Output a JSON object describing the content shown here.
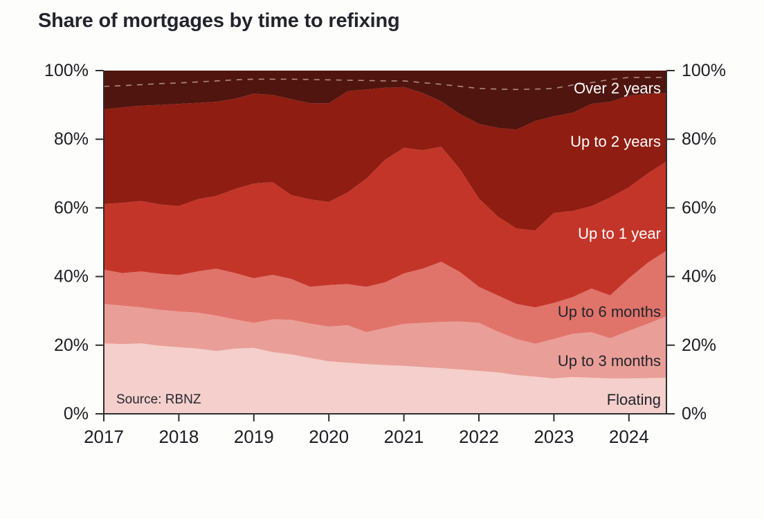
{
  "title": "Share of mortgages by time to refixing",
  "source_note": "Source: RBNZ",
  "chart_data": {
    "type": "area",
    "stacked": true,
    "title": "Share of mortgages by time to refixing",
    "source": "Source: RBNZ",
    "x_range": [
      2017,
      2024.5
    ],
    "ylim": [
      0,
      100
    ],
    "grid": false,
    "legend_position": "labels-inside-right",
    "x": [
      2017,
      2017.25,
      2017.5,
      2017.75,
      2018,
      2018.25,
      2018.5,
      2018.75,
      2019,
      2019.25,
      2019.5,
      2019.75,
      2020,
      2020.25,
      2020.5,
      2020.75,
      2021,
      2021.25,
      2021.5,
      2021.75,
      2022,
      2022.25,
      2022.5,
      2022.75,
      2023,
      2023.25,
      2023.5,
      2023.75,
      2024,
      2024.25,
      2024.5
    ],
    "x_ticks": [
      {
        "value": 2017,
        "label": "2017"
      },
      {
        "value": 2018,
        "label": "2018"
      },
      {
        "value": 2019,
        "label": "2019"
      },
      {
        "value": 2020,
        "label": "2020"
      },
      {
        "value": 2021,
        "label": "2021"
      },
      {
        "value": 2022,
        "label": "2022"
      },
      {
        "value": 2023,
        "label": "2023"
      },
      {
        "value": 2024,
        "label": "2024"
      }
    ],
    "y_ticks": [
      {
        "value": 0,
        "label": "0%"
      },
      {
        "value": 20,
        "label": "20%"
      },
      {
        "value": 40,
        "label": "40%"
      },
      {
        "value": 60,
        "label": "60%"
      },
      {
        "value": 80,
        "label": "80%"
      },
      {
        "value": 100,
        "label": "100%"
      }
    ],
    "series": [
      {
        "name": "Floating",
        "color": "#f4cfcc",
        "label_color": "#23242b",
        "label_y_pct": 4.0,
        "values": [
          20.5,
          20.3,
          20.5,
          19.8,
          19.4,
          19.0,
          18.3,
          19.0,
          19.2,
          18.0,
          17.3,
          16.3,
          15.3,
          14.9,
          14.5,
          14.2,
          14.0,
          13.6,
          13.3,
          12.9,
          12.5,
          12.1,
          11.3,
          10.8,
          10.3,
          10.7,
          10.5,
          10.3,
          10.3,
          10.4,
          10.5
        ]
      },
      {
        "name": "Up to 3 months",
        "color": "#ea9e98",
        "label_color": "#23242b",
        "label_y_pct": 15.3,
        "values": [
          11.5,
          11.2,
          10.5,
          10.5,
          10.4,
          10.5,
          10.3,
          8.5,
          7.3,
          9.5,
          10.1,
          10.0,
          10.1,
          10.9,
          9.3,
          10.8,
          12.2,
          12.9,
          13.5,
          14.0,
          14.0,
          11.9,
          10.5,
          9.6,
          11.5,
          12.6,
          13.3,
          11.7,
          13.9,
          15.8,
          17.9
        ]
      },
      {
        "name": "Up to 6 months",
        "color": "#e0746b",
        "label_color": "#23242b",
        "label_y_pct": 29.6,
        "values": [
          10.0,
          9.5,
          10.5,
          10.5,
          10.6,
          12.0,
          13.7,
          13.5,
          13.0,
          13.0,
          11.9,
          10.7,
          12.1,
          12.0,
          13.2,
          13.3,
          14.7,
          15.8,
          17.5,
          14.4,
          10.5,
          10.5,
          10.2,
          10.6,
          10.5,
          10.7,
          12.7,
          12.5,
          15.3,
          17.8,
          19.1
        ]
      },
      {
        "name": "Up to 1 year",
        "color": "#c43529",
        "label_color": "#ffffff",
        "label_y_pct": 52.4,
        "values": [
          19.1,
          20.5,
          20.5,
          20.2,
          20.1,
          21.0,
          21.2,
          24.5,
          27.6,
          27.0,
          24.4,
          25.5,
          24.2,
          26.7,
          31.5,
          35.7,
          36.6,
          34.5,
          33.5,
          29.9,
          25.7,
          23.0,
          22.0,
          22.4,
          26.2,
          25.1,
          24.0,
          28.5,
          26.5,
          26.0,
          26.0
        ]
      },
      {
        "name": "Up to 2 years",
        "color": "#8f1d12",
        "label_color": "#ffffff",
        "label_y_pct": 79.2,
        "values": [
          27.6,
          27.8,
          27.8,
          29.0,
          29.8,
          28.1,
          27.4,
          26.3,
          26.2,
          25.4,
          28.0,
          28.0,
          28.8,
          29.5,
          26.0,
          21.0,
          17.7,
          16.7,
          13.2,
          16.1,
          21.8,
          25.8,
          28.8,
          31.9,
          28.2,
          28.6,
          29.8,
          27.9,
          26.7,
          23.2,
          20.0
        ]
      },
      {
        "name": "Over 2 years",
        "color": "#4f150e",
        "label_color": "#ffffff",
        "label_y_pct": 94.8,
        "values": [
          11.3,
          10.7,
          10.2,
          10.0,
          9.7,
          9.4,
          9.1,
          8.2,
          6.7,
          7.1,
          8.3,
          9.5,
          9.5,
          6.0,
          5.5,
          5.0,
          4.8,
          6.5,
          9.0,
          12.7,
          15.5,
          16.7,
          17.2,
          14.7,
          13.3,
          12.3,
          9.7,
          9.1,
          7.3,
          6.8,
          6.5
        ]
      }
    ],
    "dashed_line": {
      "color": "rgba(255,235,230,0.55)",
      "values": [
        95.4,
        95.6,
        95.9,
        96.2,
        96.4,
        96.7,
        97.0,
        97.3,
        97.5,
        97.5,
        97.5,
        97.4,
        97.3,
        97.2,
        97.1,
        97.0,
        97.0,
        96.5,
        96.0,
        95.4,
        94.8,
        94.6,
        94.5,
        94.6,
        94.8,
        95.8,
        96.5,
        97.4,
        98.0,
        98.0,
        98.0
      ]
    },
    "axis_color": "#2e2e2e",
    "tick_label_color": "#1c1d22"
  }
}
